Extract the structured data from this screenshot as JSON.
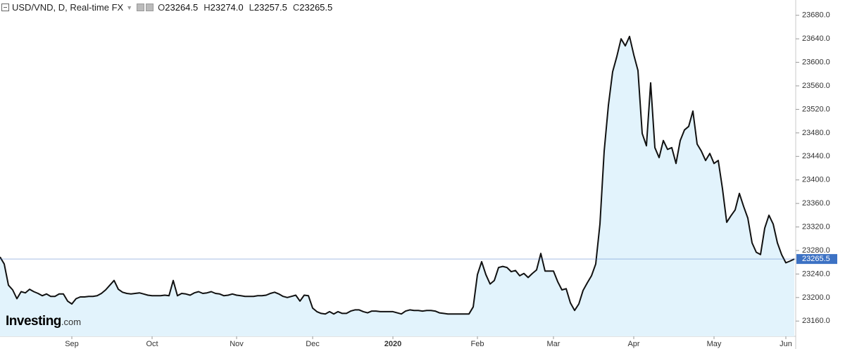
{
  "chart_data": {
    "type": "area",
    "title": "USD/VND, D, Real-time FX",
    "ohlc": [
      {
        "name": "O",
        "label": "23264.5"
      },
      {
        "name": "H",
        "label": "23274.0"
      },
      {
        "name": "L",
        "label": "23257.5"
      },
      {
        "name": "C",
        "label": "23265.5"
      }
    ],
    "watermark": {
      "brand": "Investing",
      "suffix": ".com"
    },
    "categories": [
      null,
      null,
      null,
      null,
      null,
      null,
      null,
      null,
      null,
      null,
      null,
      null,
      null,
      null,
      null,
      null,
      null,
      "Sep",
      null,
      null,
      null,
      null,
      null,
      null,
      null,
      null,
      null,
      null,
      null,
      null,
      null,
      null,
      null,
      null,
      null,
      null,
      "Oct",
      null,
      null,
      null,
      null,
      null,
      null,
      null,
      null,
      null,
      null,
      null,
      null,
      null,
      null,
      null,
      null,
      null,
      null,
      null,
      "Nov",
      null,
      null,
      null,
      null,
      null,
      null,
      null,
      null,
      null,
      null,
      null,
      null,
      null,
      null,
      null,
      null,
      null,
      "Dec",
      null,
      null,
      null,
      null,
      null,
      null,
      null,
      null,
      null,
      null,
      null,
      null,
      null,
      null,
      null,
      null,
      null,
      null,
      "2020",
      null,
      null,
      null,
      null,
      null,
      null,
      null,
      null,
      null,
      null,
      null,
      null,
      null,
      null,
      null,
      null,
      null,
      null,
      null,
      "Feb",
      null,
      null,
      null,
      null,
      null,
      null,
      null,
      null,
      null,
      null,
      null,
      null,
      null,
      null,
      null,
      null,
      null,
      "Mar",
      null,
      null,
      null,
      null,
      null,
      null,
      null,
      null,
      null,
      null,
      null,
      null,
      null,
      null,
      null,
      null,
      null,
      null,
      "Apr",
      null,
      null,
      null,
      null,
      null,
      null,
      null,
      null,
      null,
      null,
      null,
      null,
      null,
      null,
      null,
      null,
      null,
      null,
      "May",
      null,
      null,
      null,
      null,
      null,
      null,
      null,
      null,
      null,
      null,
      null,
      null,
      null,
      null,
      null,
      null,
      "Jun",
      null,
      null
    ],
    "series": [
      {
        "name": "USD/VND",
        "color": "#111111",
        "fill": "#e2f3fc",
        "values": [
          23269,
          23257,
          23221,
          23213,
          23198,
          23210,
          23208,
          23214,
          23210,
          23207,
          23203,
          23206,
          23202,
          23202,
          23206,
          23206,
          23194,
          23189,
          23198,
          23201,
          23201,
          23202,
          23202,
          23203,
          23207,
          23213,
          23221,
          23229,
          23214,
          23209,
          23207,
          23206,
          23207,
          23208,
          23206,
          23204,
          23203,
          23203,
          23203,
          23204,
          23203,
          23229,
          23203,
          23207,
          23206,
          23204,
          23208,
          23210,
          23207,
          23208,
          23210,
          23207,
          23206,
          23203,
          23204,
          23206,
          23204,
          23203,
          23202,
          23202,
          23202,
          23203,
          23203,
          23204,
          23207,
          23209,
          23206,
          23202,
          23200,
          23202,
          23204,
          23194,
          23204,
          23203,
          23182,
          23176,
          23173,
          23172,
          23176,
          23172,
          23176,
          23173,
          23173,
          23177,
          23179,
          23179,
          23176,
          23174,
          23177,
          23177,
          23176,
          23176,
          23176,
          23176,
          23174,
          23172,
          23177,
          23179,
          23178,
          23178,
          23177,
          23178,
          23178,
          23177,
          23174,
          23173,
          23172,
          23172,
          23172,
          23172,
          23172,
          23172,
          23184,
          23239,
          23261,
          23239,
          23223,
          23229,
          23251,
          23253,
          23251,
          23244,
          23246,
          23237,
          23241,
          23234,
          23241,
          23247,
          23275,
          23245,
          23245,
          23245,
          23227,
          23213,
          23215,
          23191,
          23178,
          23189,
          23212,
          23225,
          23237,
          23257,
          23325,
          23449,
          23527,
          23584,
          23610,
          23640,
          23628,
          23644,
          23613,
          23586,
          23479,
          23458,
          23565,
          23455,
          23438,
          23467,
          23452,
          23455,
          23428,
          23467,
          23485,
          23491,
          23517,
          23461,
          23449,
          23433,
          23445,
          23428,
          23433,
          23385,
          23328,
          23339,
          23349,
          23377,
          23355,
          23335,
          23293,
          23277,
          23273,
          23318,
          23340,
          23325,
          23293,
          23273,
          23259,
          23262,
          23265.5
        ]
      }
    ],
    "last_price": {
      "value": 23265.5,
      "label": "23265.5",
      "color": "#3d72c4"
    },
    "ylim": [
      23134,
      23706
    ],
    "yticks": [
      {
        "value": 23160,
        "label": "23160.0"
      },
      {
        "value": 23200,
        "label": "23200.0"
      },
      {
        "value": 23240,
        "label": "23240.0"
      },
      {
        "value": 23280,
        "label": "23280.0"
      },
      {
        "value": 23320,
        "label": "23320.0"
      },
      {
        "value": 23360,
        "label": "23360.0"
      },
      {
        "value": 23400,
        "label": "23400.0"
      },
      {
        "value": 23440,
        "label": "23440.0"
      },
      {
        "value": 23480,
        "label": "23480.0"
      },
      {
        "value": 23520,
        "label": "23520.0"
      },
      {
        "value": 23560,
        "label": "23560.0"
      },
      {
        "value": 23600,
        "label": "23600.0"
      },
      {
        "value": 23640,
        "label": "23640.0"
      },
      {
        "value": 23680,
        "label": "23680.0"
      }
    ],
    "y_axis_side": "right"
  }
}
